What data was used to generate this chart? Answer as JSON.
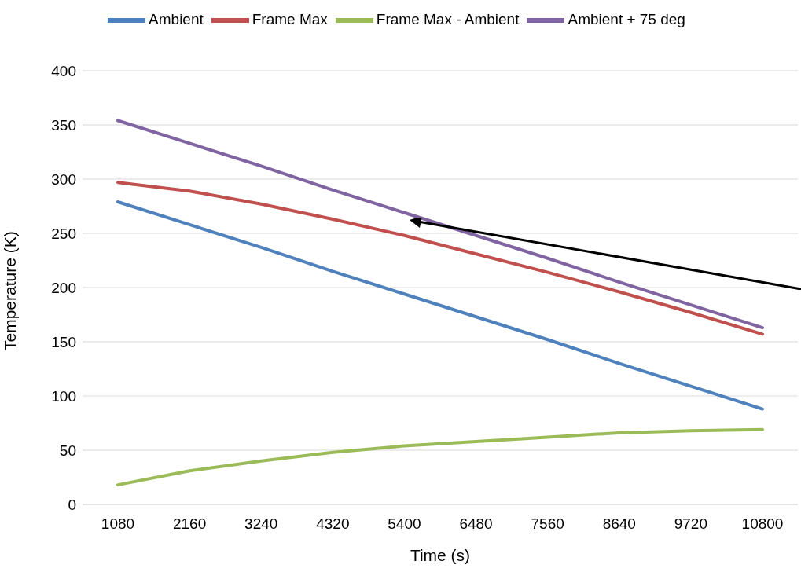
{
  "chart_data": {
    "type": "line",
    "xlabel": "Time (s)",
    "ylabel": "Temperature (K)",
    "categories": [
      "1080",
      "2160",
      "3240",
      "4320",
      "5400",
      "6480",
      "7560",
      "8640",
      "9720",
      "10800"
    ],
    "series": [
      {
        "name": "Ambient",
        "color": "#4f81bd",
        "values": [
          279,
          258,
          237,
          215,
          194,
          173,
          152,
          130,
          109,
          88
        ]
      },
      {
        "name": "Frame Max",
        "color": "#c0504d",
        "values": [
          297,
          289,
          277,
          263,
          248,
          231,
          214,
          196,
          177,
          157
        ]
      },
      {
        "name": "Frame Max - Ambient",
        "color": "#9bbb59",
        "values": [
          18,
          31,
          40,
          48,
          54,
          58,
          62,
          66,
          68,
          69
        ]
      },
      {
        "name": "Ambient + 75 deg",
        "color": "#8064a2",
        "values": [
          354,
          333,
          312,
          290,
          269,
          248,
          227,
          205,
          184,
          163
        ]
      }
    ],
    "ylim": [
      0,
      400
    ],
    "yticks": [
      0,
      50,
      100,
      150,
      200,
      250,
      300,
      350,
      400
    ],
    "grid": "y",
    "legend": "top",
    "marker": "none",
    "line_style": "solid"
  }
}
